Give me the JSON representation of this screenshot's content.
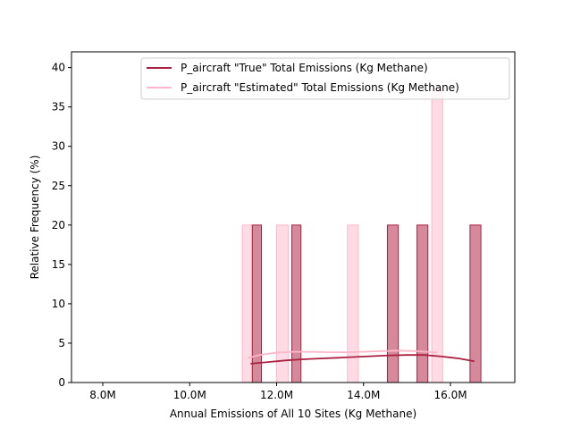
{
  "chart_data": {
    "type": "bar",
    "xlabel": "Annual Emissions of All 10 Sites (Kg Methane)",
    "ylabel": "Relative Frequency (%)",
    "xlim": [
      7.28,
      17.48
    ],
    "ylim": [
      0,
      42
    ],
    "x_ticks": [
      8.0,
      10.0,
      12.0,
      14.0,
      16.0
    ],
    "x_tick_labels": [
      "8.0M",
      "10.0M",
      "12.0M",
      "14.0M",
      "16.0M"
    ],
    "y_ticks": [
      0,
      5,
      10,
      15,
      20,
      25,
      30,
      35,
      40
    ],
    "y_tick_labels": [
      "0",
      "5",
      "10",
      "15",
      "20",
      "25",
      "30",
      "35",
      "40"
    ],
    "grid": false,
    "legend_position": "upper right",
    "series": [
      {
        "name": "P_aircraft \"Estimated\" Total Emissions (Kg Methane)",
        "color": "#ffb6c8",
        "fill": "#ffdbe6",
        "bars": [
          {
            "x0": 11.21,
            "x1": 11.44,
            "value": 20
          },
          {
            "x0": 12.0,
            "x1": 12.27,
            "value": 20
          },
          {
            "x0": 13.63,
            "x1": 13.88,
            "value": 20
          },
          {
            "x0": 15.57,
            "x1": 15.82,
            "value": 37
          }
        ],
        "kde": {
          "x": [
            11.33,
            11.6,
            12.0,
            12.4,
            12.8,
            13.2,
            13.6,
            14.0,
            14.4,
            14.8,
            15.2,
            15.6,
            15.69
          ],
          "y": [
            3.1,
            3.5,
            3.8,
            3.9,
            3.9,
            3.85,
            3.85,
            3.9,
            4.0,
            4.05,
            4.0,
            3.85,
            3.8
          ]
        }
      },
      {
        "name": "P_aircraft \"True\" Total Emissions (Kg Methane)",
        "color": "#aa2040",
        "fill": "#d48a9a",
        "bars": [
          {
            "x0": 11.44,
            "x1": 11.65,
            "value": 20
          },
          {
            "x0": 12.35,
            "x1": 12.56,
            "value": 20
          },
          {
            "x0": 14.55,
            "x1": 14.8,
            "value": 20
          },
          {
            "x0": 15.23,
            "x1": 15.48,
            "value": 20
          },
          {
            "x0": 16.45,
            "x1": 16.7,
            "value": 20
          }
        ],
        "kde": {
          "x": [
            11.4,
            11.8,
            12.2,
            12.6,
            13.0,
            13.4,
            13.8,
            14.2,
            14.6,
            15.0,
            15.4,
            15.8,
            16.2,
            16.55
          ],
          "y": [
            2.4,
            2.6,
            2.8,
            2.95,
            3.05,
            3.15,
            3.25,
            3.35,
            3.45,
            3.5,
            3.5,
            3.3,
            3.05,
            2.7
          ]
        }
      }
    ],
    "legend": [
      {
        "label": "P_aircraft \"True\" Total Emissions (Kg Methane)",
        "color": "#aa2040"
      },
      {
        "label": "P_aircraft \"Estimated\" Total Emissions (Kg Methane)",
        "color": "#ffb6c8"
      }
    ]
  }
}
